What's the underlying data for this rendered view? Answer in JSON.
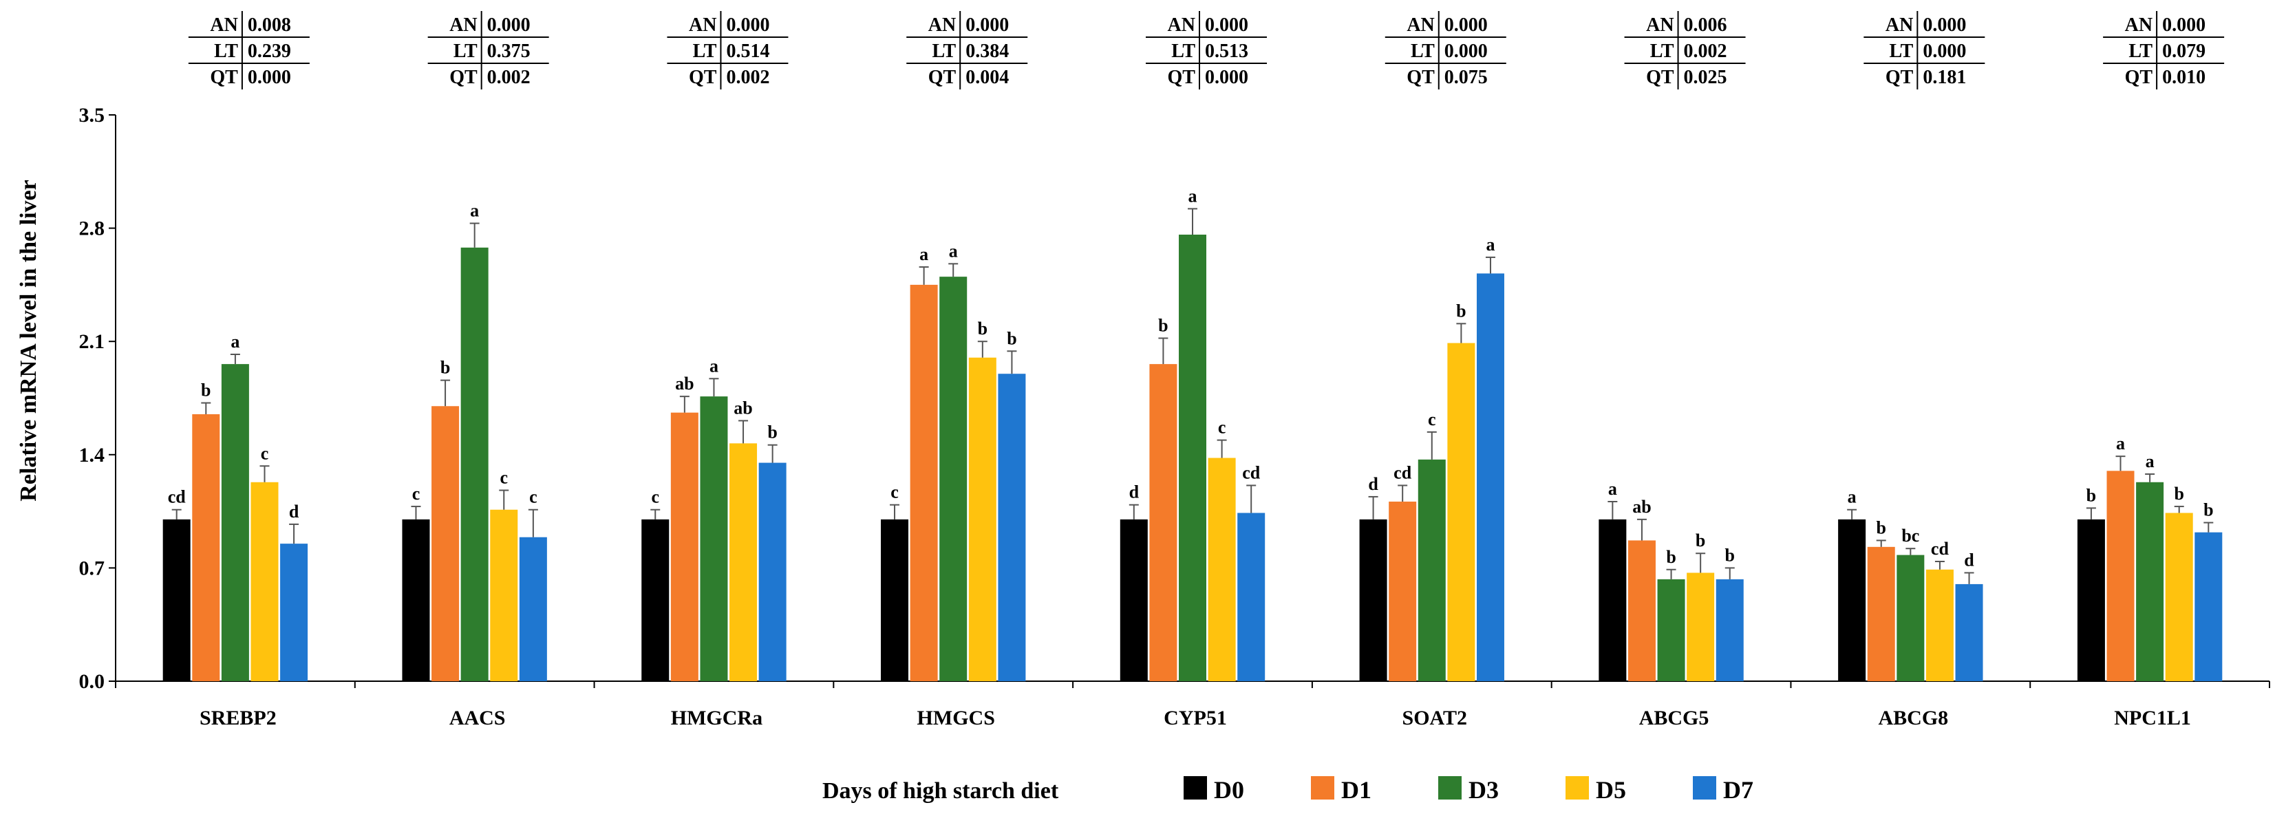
{
  "chart_data": {
    "type": "bar",
    "title": "",
    "ylabel": "Relative mRNA level  in the liver",
    "xlabel": "",
    "ylim": [
      0,
      3.5
    ],
    "yticks": [
      "0.0",
      "0.7",
      "1.4",
      "2.1",
      "2.8",
      "3.5"
    ],
    "categories": [
      "SREBP2",
      "AACS",
      "HMGCRa",
      "HMGCS",
      "CYP51",
      "SOAT2",
      "ABCG5",
      "ABCG8",
      "NPC1L1"
    ],
    "legend_title": "Days of high starch diet",
    "series": [
      {
        "name": "D0",
        "color": "#000000",
        "values": [
          1.0,
          1.0,
          1.0,
          1.0,
          1.0,
          1.0,
          1.0,
          1.0,
          1.0
        ],
        "errors": [
          0.06,
          0.08,
          0.06,
          0.09,
          0.09,
          0.14,
          0.11,
          0.06,
          0.07
        ],
        "labels": [
          "cd",
          "c",
          "c",
          "c",
          "d",
          "d",
          "a",
          "a",
          "b"
        ]
      },
      {
        "name": "D1",
        "color": "#F47B2A",
        "values": [
          1.65,
          1.7,
          1.66,
          2.45,
          1.96,
          1.11,
          0.87,
          0.83,
          1.3
        ],
        "errors": [
          0.07,
          0.16,
          0.1,
          0.11,
          0.16,
          0.1,
          0.13,
          0.04,
          0.09
        ],
        "labels": [
          "b",
          "b",
          "ab",
          "a",
          "b",
          "cd",
          "ab",
          "b",
          "a"
        ]
      },
      {
        "name": "D3",
        "color": "#2E7D2E",
        "values": [
          1.96,
          2.68,
          1.76,
          2.5,
          2.76,
          1.37,
          0.63,
          0.78,
          1.23
        ],
        "errors": [
          0.06,
          0.15,
          0.11,
          0.08,
          0.16,
          0.17,
          0.06,
          0.04,
          0.05
        ],
        "labels": [
          "a",
          "a",
          "a",
          "a",
          "a",
          "c",
          "b",
          "bc",
          "a"
        ]
      },
      {
        "name": "D5",
        "color": "#FFC20E",
        "values": [
          1.23,
          1.06,
          1.47,
          2.0,
          1.38,
          2.09,
          0.67,
          0.69,
          1.04
        ],
        "errors": [
          0.1,
          0.12,
          0.14,
          0.1,
          0.11,
          0.12,
          0.12,
          0.05,
          0.04
        ],
        "labels": [
          "c",
          "c",
          "ab",
          "b",
          "c",
          "b",
          "b",
          "cd",
          "b"
        ]
      },
      {
        "name": "D7",
        "color": "#1F77D0",
        "values": [
          0.85,
          0.89,
          1.35,
          1.9,
          1.04,
          2.52,
          0.63,
          0.6,
          0.92
        ],
        "errors": [
          0.12,
          0.17,
          0.11,
          0.14,
          0.17,
          0.1,
          0.07,
          0.07,
          0.06
        ],
        "labels": [
          "d",
          "c",
          "b",
          "b",
          "cd",
          "a",
          "b",
          "d",
          "b"
        ]
      }
    ],
    "stats_tables": [
      {
        "AN": "0.008",
        "LT": "0.239",
        "QT": "0.000"
      },
      {
        "AN": "0.000",
        "LT": "0.375",
        "QT": "0.002"
      },
      {
        "AN": "0.000",
        "LT": "0.514",
        "QT": "0.002"
      },
      {
        "AN": "0.000",
        "LT": "0.384",
        "QT": "0.004"
      },
      {
        "AN": "0.000",
        "LT": "0.513",
        "QT": "0.000"
      },
      {
        "AN": "0.000",
        "LT": "0.000",
        "QT": "0.075"
      },
      {
        "AN": "0.006",
        "LT": "0.002",
        "QT": "0.025"
      },
      {
        "AN": "0.000",
        "LT": "0.000",
        "QT": "0.181"
      },
      {
        "AN": "0.000",
        "LT": "0.079",
        "QT": "0.010"
      }
    ],
    "stats_keys": [
      "AN",
      "LT",
      "QT"
    ]
  }
}
